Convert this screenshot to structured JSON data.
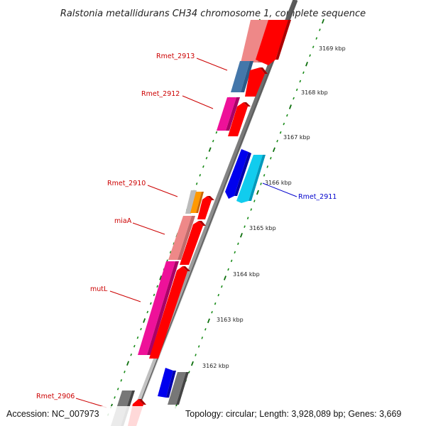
{
  "title": "Ralstonia metallidurans CH34 chromosome 1, complete sequence",
  "footer": {
    "accession": "Accession: NC_007973",
    "topology": "Topology: circular; Length: 3,928,089 bp; Genes: 3,669"
  },
  "ruler": {
    "labels": [
      "3169 kbp",
      "3168 kbp",
      "3167 kbp",
      "3166 kbp",
      "3165 kbp",
      "3164 kbp",
      "3163 kbp",
      "3162 kbp"
    ]
  },
  "genes": {
    "rmet_2913": "Rmet_2913",
    "rmet_2912": "Rmet_2912",
    "rmet_2910": "Rmet_2910",
    "miaA": "miaA",
    "mutL": "mutL",
    "rmet_2906": "Rmet_2906",
    "rmet_2911": "Rmet_2911"
  },
  "colors": {
    "red_arrow": "#ff0000",
    "pink": "#ee1199",
    "salmon": "#ee8888",
    "steel_blue": "#4477aa",
    "blue": "#0000ee",
    "cyan": "#11ccee",
    "orange": "#ff9900",
    "light_gray": "#bbbbbb",
    "dark_gray": "#666666",
    "backbone": "#888888",
    "tick": "#1a8c1a",
    "label_red": "#cc0000",
    "label_blue": "#0000cc"
  }
}
